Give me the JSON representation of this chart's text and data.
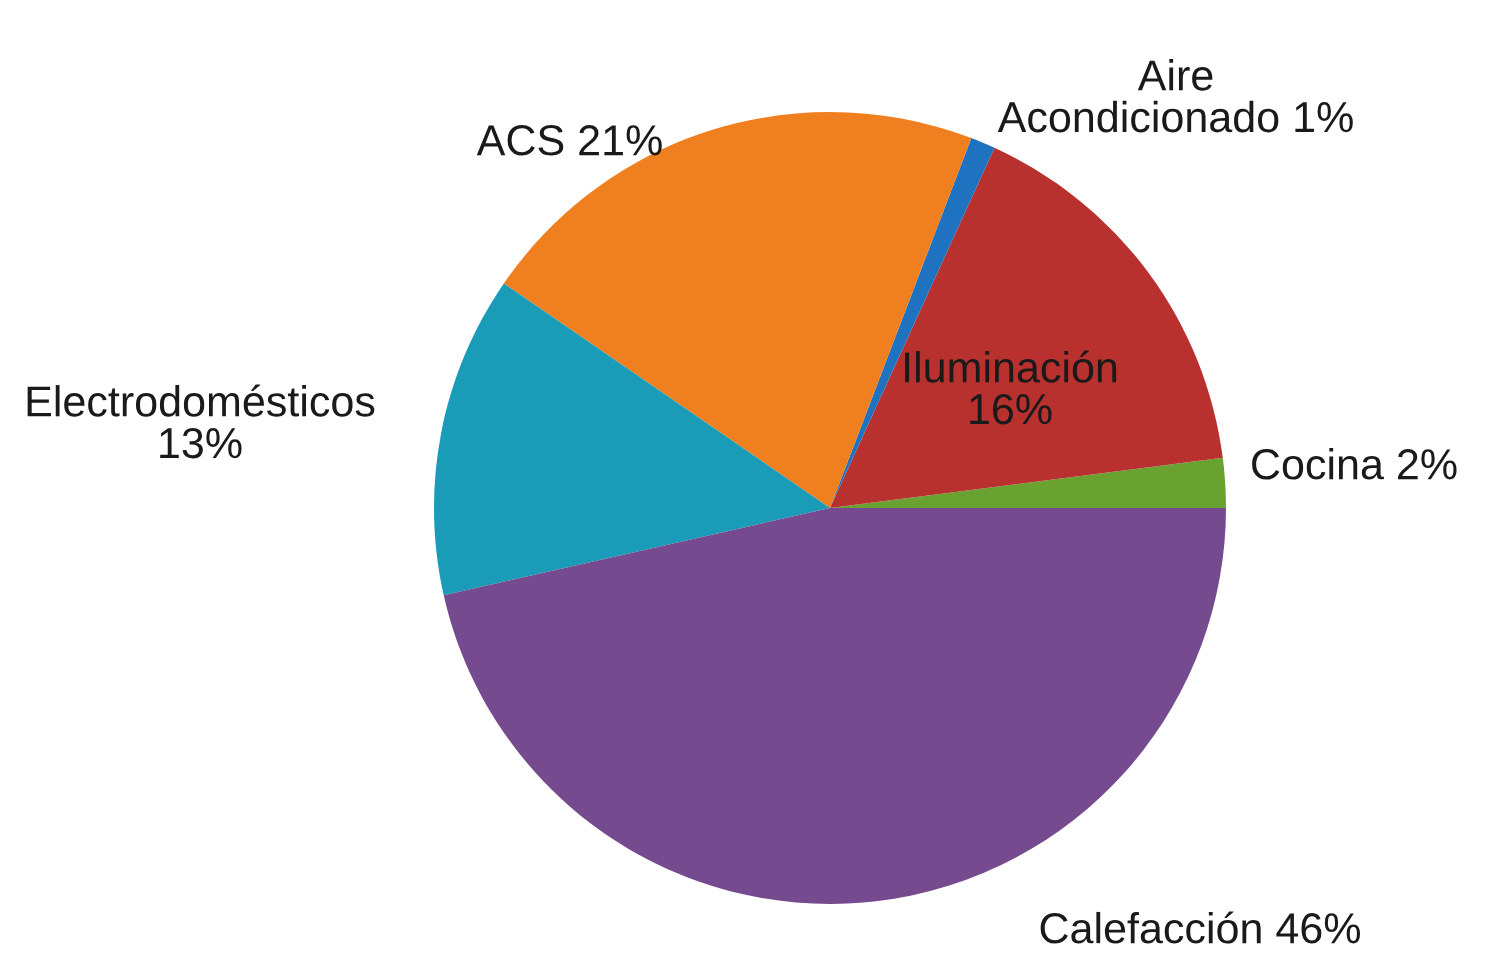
{
  "chart_data": {
    "type": "pie",
    "categories": [
      "Cocina",
      "Iluminación",
      "Aire Acondicionado",
      "ACS",
      "Electrodomésticos",
      "Calefacción"
    ],
    "values": [
      2,
      16,
      1,
      21,
      13,
      46
    ],
    "value_labels": [
      "2%",
      "16%",
      "1%",
      "21%",
      "13%",
      "46%"
    ],
    "colors": [
      "#6aa232",
      "#b8312f",
      "#1f72c0",
      "#f0801f",
      "#1a9cb8",
      "#764a8e"
    ]
  }
}
